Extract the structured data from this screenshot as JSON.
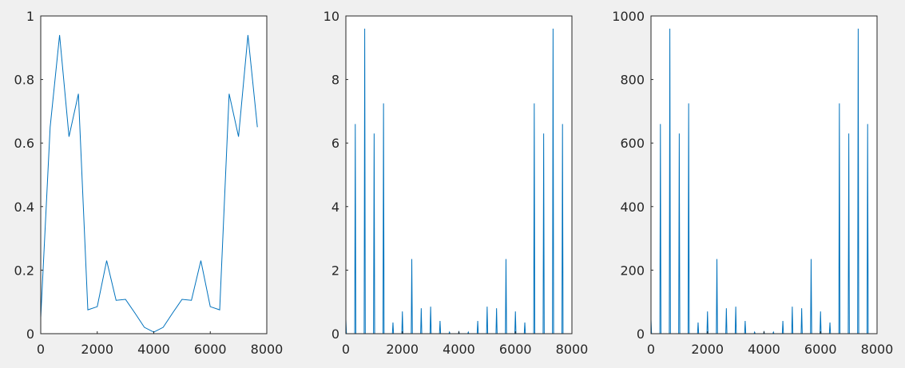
{
  "chart_data": [
    {
      "type": "line",
      "color": "#0072bd",
      "x": [
        0,
        333,
        667,
        1000,
        1333,
        1667,
        2000,
        2333,
        2667,
        3000,
        3333,
        3667,
        4000,
        4333,
        4667,
        5000,
        5333,
        5667,
        6000,
        6333,
        6667,
        7000,
        7333,
        7667
      ],
      "values": [
        0.05,
        0.65,
        0.94,
        0.62,
        0.755,
        0.075,
        0.085,
        0.23,
        0.105,
        0.108,
        0.065,
        0.02,
        0.005,
        0.02,
        0.065,
        0.108,
        0.105,
        0.23,
        0.085,
        0.075,
        0.755,
        0.62,
        0.94,
        0.65
      ],
      "xlim": [
        0,
        8000
      ],
      "xticks": [
        0,
        2000,
        4000,
        6000,
        8000
      ],
      "ylim": [
        0,
        1
      ],
      "yticks": [
        0,
        0.2,
        0.4,
        0.6,
        0.8,
        1
      ]
    },
    {
      "type": "line",
      "color": "#0072bd",
      "x": [
        0,
        20,
        313,
        333,
        353,
        647,
        667,
        687,
        980,
        1000,
        1020,
        1313,
        1333,
        1353,
        1647,
        1667,
        1687,
        1980,
        2000,
        2020,
        2313,
        2333,
        2353,
        2647,
        2667,
        2687,
        2980,
        3000,
        3020,
        3313,
        3333,
        3353,
        3647,
        3667,
        3687,
        3980,
        4000,
        4020,
        4313,
        4333,
        4353,
        4647,
        4667,
        4687,
        4980,
        5000,
        5020,
        5313,
        5333,
        5353,
        5647,
        5667,
        5687,
        5980,
        6000,
        6020,
        6313,
        6333,
        6353,
        6647,
        6667,
        6687,
        6980,
        7000,
        7020,
        7313,
        7333,
        7353,
        7647,
        7667,
        7687
      ],
      "values": [
        0.45,
        0,
        0,
        6.6,
        0,
        0,
        9.6,
        0,
        0,
        6.3,
        0,
        0,
        7.25,
        0,
        0,
        0.35,
        0,
        0,
        0.7,
        0,
        0,
        2.35,
        0,
        0,
        0.8,
        0,
        0,
        0.85,
        0,
        0,
        0.4,
        0,
        0,
        0.05,
        0,
        0,
        0.06,
        0,
        0,
        0.05,
        0,
        0,
        0.4,
        0,
        0,
        0.85,
        0,
        0,
        0.8,
        0,
        0,
        2.35,
        0,
        0,
        0.7,
        0,
        0,
        0.35,
        0,
        0,
        7.25,
        0,
        0,
        6.3,
        0,
        0,
        9.6,
        0,
        0,
        6.6,
        0
      ],
      "xlim": [
        0,
        8000
      ],
      "xticks": [
        0,
        2000,
        4000,
        6000,
        8000
      ],
      "ylim": [
        0,
        10
      ],
      "yticks": [
        0,
        2,
        4,
        6,
        8,
        10
      ]
    },
    {
      "type": "line",
      "color": "#0072bd",
      "x": [
        0,
        20,
        313,
        333,
        353,
        647,
        667,
        687,
        980,
        1000,
        1020,
        1313,
        1333,
        1353,
        1647,
        1667,
        1687,
        1980,
        2000,
        2020,
        2313,
        2333,
        2353,
        2647,
        2667,
        2687,
        2980,
        3000,
        3020,
        3313,
        3333,
        3353,
        3647,
        3667,
        3687,
        3980,
        4000,
        4020,
        4313,
        4333,
        4353,
        4647,
        4667,
        4687,
        4980,
        5000,
        5020,
        5313,
        5333,
        5353,
        5647,
        5667,
        5687,
        5980,
        6000,
        6020,
        6313,
        6333,
        6353,
        6647,
        6667,
        6687,
        6980,
        7000,
        7020,
        7313,
        7333,
        7353,
        7647,
        7667,
        7687
      ],
      "values": [
        45,
        0,
        0,
        660,
        0,
        0,
        960,
        0,
        0,
        630,
        0,
        0,
        725,
        0,
        0,
        35,
        0,
        0,
        70,
        0,
        0,
        235,
        0,
        0,
        80,
        0,
        0,
        85,
        0,
        0,
        40,
        0,
        0,
        5,
        0,
        0,
        6,
        0,
        0,
        5,
        0,
        0,
        40,
        0,
        0,
        85,
        0,
        0,
        80,
        0,
        0,
        235,
        0,
        0,
        70,
        0,
        0,
        35,
        0,
        0,
        725,
        0,
        0,
        630,
        0,
        0,
        960,
        0,
        0,
        660,
        0
      ],
      "xlim": [
        0,
        8000
      ],
      "xticks": [
        0,
        2000,
        4000,
        6000,
        8000
      ],
      "ylim": [
        0,
        1000
      ],
      "yticks": [
        0,
        200,
        400,
        600,
        800,
        1000
      ]
    }
  ]
}
